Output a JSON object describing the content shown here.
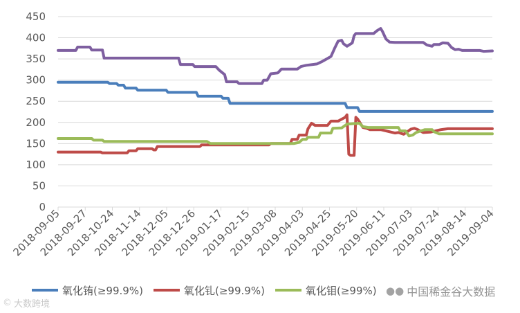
{
  "chart_data": {
    "type": "line",
    "title": "",
    "xlabel": "",
    "ylabel": "",
    "ylim": [
      0,
      450
    ],
    "yticks": [
      0,
      50,
      100,
      150,
      200,
      250,
      300,
      350,
      400,
      450
    ],
    "grid": "horizontal",
    "legend_position": "bottom",
    "x_tick_labels": [
      "2018-09-05",
      "2018-09-27",
      "2018-10-24",
      "2018-11-14",
      "2018-12-05",
      "2018-12-26",
      "2019-01-17",
      "2019-02-15",
      "2019-03-08",
      "2019-04-03",
      "2019-04-25",
      "2019-05-20",
      "2019-06-11",
      "2019-07-03",
      "2019-07-24",
      "2019-08-14",
      "2019-09-04"
    ],
    "x_count": 246,
    "series": [
      {
        "name": "氧化铕(≥99.9%)",
        "color": "#4a7ebb",
        "points": [
          [
            0,
            295
          ],
          [
            28,
            295
          ],
          [
            29,
            292
          ],
          [
            33,
            292
          ],
          [
            34,
            288
          ],
          [
            37,
            288
          ],
          [
            38,
            281
          ],
          [
            44,
            281
          ],
          [
            45,
            276
          ],
          [
            61,
            276
          ],
          [
            62,
            271
          ],
          [
            78,
            271
          ],
          [
            79,
            262
          ],
          [
            92,
            262
          ],
          [
            93,
            257
          ],
          [
            96,
            257
          ],
          [
            97,
            245
          ],
          [
            162,
            245
          ],
          [
            163,
            235
          ],
          [
            169,
            235
          ],
          [
            170,
            226
          ],
          [
            245,
            226
          ]
        ]
      },
      {
        "name": "氧化钆(≥99.9%)",
        "color": "#be4b48",
        "points": [
          [
            0,
            130
          ],
          [
            24,
            130
          ],
          [
            25,
            128
          ],
          [
            39,
            128
          ],
          [
            40,
            133
          ],
          [
            44,
            133
          ],
          [
            45,
            138
          ],
          [
            53,
            138
          ],
          [
            54,
            135
          ],
          [
            55,
            135
          ],
          [
            56,
            143
          ],
          [
            80,
            143
          ],
          [
            81,
            147
          ],
          [
            119,
            147
          ],
          [
            120,
            150
          ],
          [
            131,
            150
          ],
          [
            132,
            160
          ],
          [
            135,
            160
          ],
          [
            136,
            170
          ],
          [
            140,
            170
          ],
          [
            141,
            185
          ],
          [
            143,
            198
          ],
          [
            145,
            193
          ],
          [
            152,
            193
          ],
          [
            154,
            203
          ],
          [
            158,
            203
          ],
          [
            162,
            212
          ],
          [
            163,
            218
          ],
          [
            164,
            125
          ],
          [
            165,
            122
          ],
          [
            167,
            122
          ],
          [
            168,
            212
          ],
          [
            169,
            208
          ],
          [
            172,
            188
          ],
          [
            174,
            186
          ],
          [
            176,
            183
          ],
          [
            182,
            183
          ],
          [
            190,
            175
          ],
          [
            192,
            176
          ],
          [
            195,
            172
          ],
          [
            199,
            184
          ],
          [
            201,
            186
          ],
          [
            203,
            183
          ],
          [
            206,
            176
          ],
          [
            210,
            177
          ],
          [
            213,
            180
          ],
          [
            216,
            183
          ],
          [
            220,
            185
          ],
          [
            245,
            185
          ]
        ]
      },
      {
        "name": "氧化钼(≥99%)",
        "color": "#9bbb59",
        "points": [
          [
            0,
            162
          ],
          [
            19,
            162
          ],
          [
            20,
            158
          ],
          [
            25,
            158
          ],
          [
            26,
            155
          ],
          [
            84,
            155
          ],
          [
            86,
            150
          ],
          [
            133,
            150
          ],
          [
            136,
            153
          ],
          [
            138,
            160
          ],
          [
            140,
            160
          ],
          [
            141,
            165
          ],
          [
            147,
            165
          ],
          [
            148,
            175
          ],
          [
            154,
            175
          ],
          [
            155,
            186
          ],
          [
            160,
            187
          ],
          [
            163,
            196
          ],
          [
            170,
            198
          ],
          [
            172,
            190
          ],
          [
            175,
            188
          ],
          [
            192,
            188
          ],
          [
            193,
            180
          ],
          [
            196,
            180
          ],
          [
            198,
            168
          ],
          [
            200,
            170
          ],
          [
            202,
            176
          ],
          [
            204,
            179
          ],
          [
            207,
            183
          ],
          [
            211,
            183
          ],
          [
            212,
            178
          ],
          [
            215,
            173
          ],
          [
            245,
            173
          ]
        ]
      },
      {
        "name": "",
        "color": "#7e5fa0",
        "points": [
          [
            0,
            370
          ],
          [
            10,
            370
          ],
          [
            11,
            378
          ],
          [
            18,
            378
          ],
          [
            19,
            371
          ],
          [
            25,
            371
          ],
          [
            26,
            352
          ],
          [
            68,
            352
          ],
          [
            69,
            337
          ],
          [
            76,
            337
          ],
          [
            77,
            332
          ],
          [
            89,
            332
          ],
          [
            91,
            323
          ],
          [
            94,
            313
          ],
          [
            95,
            296
          ],
          [
            101,
            296
          ],
          [
            102,
            292
          ],
          [
            115,
            292
          ],
          [
            116,
            300
          ],
          [
            118,
            300
          ],
          [
            120,
            315
          ],
          [
            124,
            317
          ],
          [
            126,
            326
          ],
          [
            135,
            326
          ],
          [
            137,
            332
          ],
          [
            140,
            335
          ],
          [
            146,
            338
          ],
          [
            149,
            344
          ],
          [
            152,
            351
          ],
          [
            154,
            356
          ],
          [
            156,
            375
          ],
          [
            158,
            392
          ],
          [
            160,
            394
          ],
          [
            161,
            386
          ],
          [
            163,
            380
          ],
          [
            166,
            388
          ],
          [
            167,
            405
          ],
          [
            168,
            410
          ],
          [
            178,
            410
          ],
          [
            180,
            417
          ],
          [
            182,
            422
          ],
          [
            183,
            415
          ],
          [
            185,
            397
          ],
          [
            187,
            390
          ],
          [
            190,
            389
          ],
          [
            206,
            389
          ],
          [
            208,
            383
          ],
          [
            211,
            380
          ],
          [
            212,
            384
          ],
          [
            215,
            384
          ],
          [
            217,
            388
          ],
          [
            220,
            387
          ],
          [
            222,
            377
          ],
          [
            224,
            372
          ],
          [
            226,
            373
          ],
          [
            228,
            370
          ],
          [
            238,
            370
          ],
          [
            240,
            368
          ],
          [
            245,
            369
          ]
        ]
      }
    ]
  },
  "watermarks": {
    "top_right": "中国稀金谷大数据",
    "bottom_left": "大数跨境"
  },
  "icons": {
    "top_right": "wechat-icon",
    "bottom_left": "copyright-icon"
  }
}
